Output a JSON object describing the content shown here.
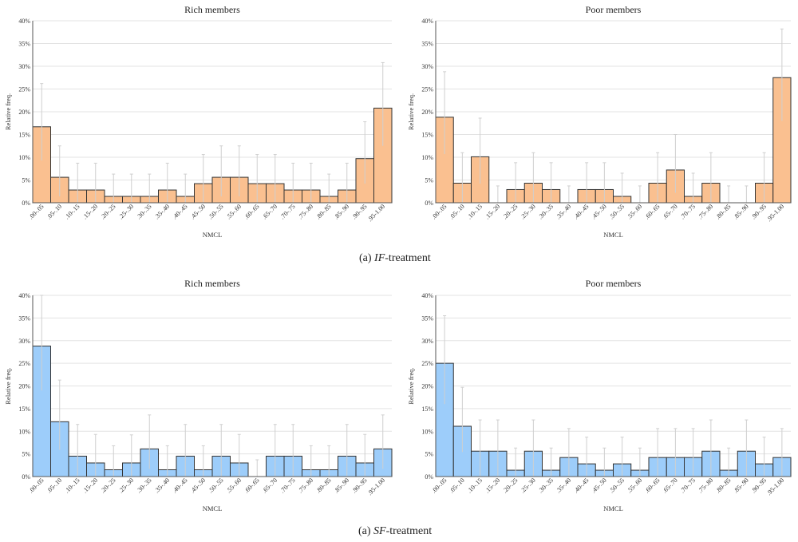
{
  "captions": [
    {
      "prefix": "(a) ",
      "name": "IF",
      "suffix": "-treatment"
    },
    {
      "prefix": "(a) ",
      "name": "SF",
      "suffix": "-treatment"
    }
  ],
  "colors": {
    "orange": "#fac090",
    "blue": "#9dcdfa",
    "edge": "#333333",
    "error": "#cccccc"
  },
  "chart_data": [
    {
      "type": "bar",
      "treatment": "IF",
      "title": "Rich members",
      "xlabel": "NMCL",
      "ylabel": "Relative freq.",
      "ylim": [
        0,
        40
      ],
      "yticks": [
        0,
        5,
        10,
        15,
        20,
        25,
        30,
        35,
        40
      ],
      "ytick_labels": [
        "0%",
        "5%",
        "10%",
        "15%",
        "20%",
        "25%",
        "30%",
        "35%",
        "40%"
      ],
      "categories": [
        ".00-.05",
        ".05-.10",
        ".10-.15",
        ".15-.20",
        ".20-.25",
        ".25-.30",
        ".30-.35",
        ".35-.40",
        ".40-.45",
        ".45-.50",
        ".50-.55",
        ".55-.60",
        ".60-.65",
        ".65-.70",
        ".70-.75",
        ".75-.80",
        ".80-.85",
        ".85-.90",
        ".90-.95",
        ".95-1.00"
      ],
      "values": [
        16.7,
        5.6,
        2.8,
        2.8,
        1.4,
        1.4,
        1.4,
        2.8,
        1.4,
        4.2,
        5.6,
        5.6,
        4.2,
        4.2,
        2.8,
        2.8,
        1.4,
        2.8,
        9.7,
        20.8
      ],
      "err_high": [
        26.2,
        12.5,
        8.7,
        8.7,
        6.3,
        6.3,
        6.3,
        8.7,
        6.3,
        10.6,
        12.5,
        12.5,
        10.6,
        10.6,
        8.7,
        8.7,
        6.3,
        8.7,
        17.8,
        30.8
      ],
      "err_low": [
        9.3,
        1.4,
        0,
        0,
        0,
        0,
        0,
        0,
        0,
        0,
        1.4,
        1.4,
        0,
        0,
        0,
        0,
        0,
        0,
        4.2,
        12.5
      ],
      "color": "orange"
    },
    {
      "type": "bar",
      "treatment": "IF",
      "title": "Poor members",
      "xlabel": "NMCL",
      "ylabel": "Relative freq.",
      "ylim": [
        0,
        40
      ],
      "yticks": [
        0,
        5,
        10,
        15,
        20,
        25,
        30,
        35,
        40
      ],
      "ytick_labels": [
        "0%",
        "5%",
        "10%",
        "15%",
        "20%",
        "25%",
        "30%",
        "35%",
        "40%"
      ],
      "categories": [
        ".00-.05",
        ".05-.10",
        ".10-.15",
        ".15-.20",
        ".20-.25",
        ".25-.30",
        ".30-.35",
        ".35-.40",
        ".40-.45",
        ".45-.50",
        ".50-.55",
        ".55-.60",
        ".60-.65",
        ".65-.70",
        ".70-.75",
        ".75-.80",
        ".80-.85",
        ".85-.90",
        ".90-.95",
        ".95-1.00"
      ],
      "values": [
        18.8,
        4.3,
        10.1,
        0,
        2.9,
        4.3,
        2.9,
        0,
        2.9,
        2.9,
        1.4,
        0,
        4.3,
        7.2,
        1.4,
        4.3,
        0,
        0,
        4.3,
        27.5
      ],
      "err_high": [
        28.8,
        11.0,
        18.6,
        3.7,
        8.8,
        11.0,
        8.8,
        3.7,
        8.8,
        8.8,
        6.5,
        3.7,
        11.0,
        15.0,
        6.5,
        11.0,
        3.7,
        3.7,
        11.0,
        38.2
      ],
      "err_low": [
        10.7,
        0,
        4.2,
        0,
        0,
        0,
        0,
        0,
        0,
        0,
        0,
        0,
        0,
        2.2,
        0,
        0,
        0,
        0,
        0,
        18.0
      ],
      "color": "orange"
    },
    {
      "type": "bar",
      "treatment": "SF",
      "title": "Rich members",
      "xlabel": "NMCL",
      "ylabel": "Relative freq.",
      "ylim": [
        0,
        40
      ],
      "yticks": [
        0,
        5,
        10,
        15,
        20,
        25,
        30,
        35,
        40
      ],
      "ytick_labels": [
        "0%",
        "5%",
        "10%",
        "15%",
        "20%",
        "25%",
        "30%",
        "35%",
        "40%"
      ],
      "categories": [
        ".00-.05",
        ".05-.10",
        ".10-.15",
        ".15-.20",
        ".20-.25",
        ".25-.30",
        ".30-.35",
        ".35-.40",
        ".40-.45",
        ".45-.50",
        ".50-.55",
        ".55-.60",
        ".60-.65",
        ".65-.70",
        ".70-.75",
        ".75-.80",
        ".80-.85",
        ".85-.90",
        ".90-.95",
        ".95-1.00"
      ],
      "values": [
        28.8,
        12.1,
        4.5,
        3.0,
        1.5,
        3.0,
        6.1,
        1.5,
        4.5,
        1.5,
        4.5,
        3.0,
        0,
        4.5,
        4.5,
        1.5,
        1.5,
        4.5,
        3.0,
        6.1
      ],
      "err_high": [
        40.0,
        21.3,
        11.5,
        9.3,
        6.8,
        9.2,
        13.6,
        6.8,
        11.5,
        6.8,
        11.5,
        9.3,
        3.7,
        11.5,
        11.5,
        6.8,
        6.8,
        11.5,
        9.3,
        13.6
      ],
      "err_low": [
        19.0,
        5.9,
        0,
        0,
        0,
        0,
        1.7,
        0,
        0,
        0,
        0,
        0,
        0,
        0,
        0,
        0,
        0,
        0,
        0,
        1.7
      ],
      "color": "blue"
    },
    {
      "type": "bar",
      "treatment": "SF",
      "title": "Poor members",
      "xlabel": "NMCL",
      "ylabel": "Relative freq.",
      "ylim": [
        0,
        40
      ],
      "yticks": [
        0,
        5,
        10,
        15,
        20,
        25,
        30,
        35,
        40
      ],
      "ytick_labels": [
        "0%",
        "5%",
        "10%",
        "15%",
        "20%",
        "25%",
        "30%",
        "35%",
        "40%"
      ],
      "categories": [
        ".00-.05",
        ".05-.10",
        ".10-.15",
        ".15-.20",
        ".20-.25",
        ".25-.30",
        ".30-.35",
        ".35-.40",
        ".40-.45",
        ".45-.50",
        ".50-.55",
        ".55-.60",
        ".60-.65",
        ".65-.70",
        ".70-.75",
        ".75-.80",
        ".80-.85",
        ".85-.90",
        ".90-.95",
        ".95-1.00"
      ],
      "values": [
        25.0,
        11.1,
        5.6,
        5.6,
        1.4,
        5.6,
        1.4,
        4.2,
        2.8,
        1.4,
        2.8,
        1.4,
        4.2,
        4.2,
        4.2,
        5.6,
        1.4,
        5.6,
        2.8,
        4.2
      ],
      "err_high": [
        35.5,
        19.7,
        12.5,
        12.5,
        6.3,
        12.5,
        6.3,
        10.6,
        8.7,
        6.3,
        8.7,
        6.3,
        10.6,
        10.6,
        10.6,
        12.5,
        6.3,
        12.5,
        8.7,
        10.6
      ],
      "err_low": [
        16.0,
        5.4,
        0,
        0,
        0,
        0,
        0,
        0,
        0,
        0,
        0,
        0,
        0,
        0,
        0,
        0,
        0,
        0,
        0,
        0
      ],
      "color": "blue"
    }
  ]
}
